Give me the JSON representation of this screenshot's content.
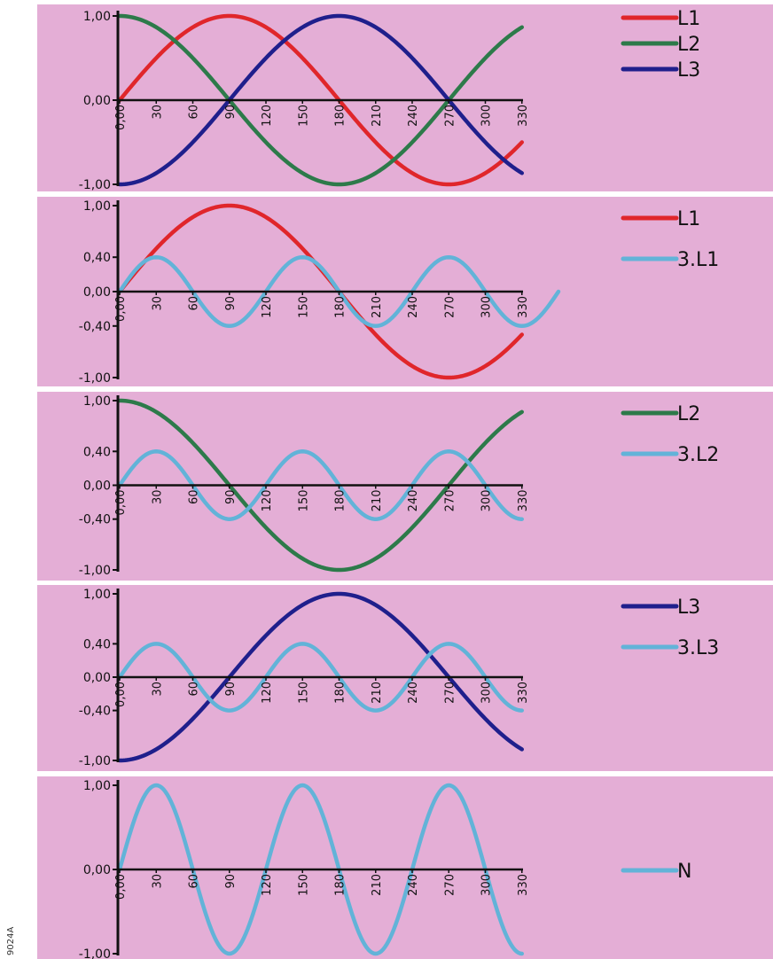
{
  "figure_code": "9024A",
  "colors": {
    "background": "#e4aed6",
    "axis": "#111111",
    "L1": "#e0262b",
    "L2": "#2d7a4a",
    "L3": "#1f1f8c",
    "harmonic": "#62b3d8"
  },
  "chart_data": [
    {
      "type": "line",
      "x_ticks": [
        "0,00",
        "30",
        "60",
        "90",
        "120",
        "150",
        "180",
        "210",
        "240",
        "270",
        "300",
        "330"
      ],
      "y_ticks": [
        "1,00",
        "0,00",
        "-1,00"
      ],
      "xlim": [
        0,
        330
      ],
      "ylim": [
        -1,
        1
      ],
      "grid": false,
      "legend_position": "right",
      "series": [
        {
          "name": "L1",
          "function": "sin",
          "phase_deg": 0,
          "amplitude": 1,
          "harmonic": 1,
          "x_range": [
            0,
            330
          ],
          "color": "#e0262b"
        },
        {
          "name": "L2",
          "function": "sin",
          "phase_deg": 90,
          "amplitude": 1,
          "harmonic": 1,
          "x_range": [
            0,
            330
          ],
          "color": "#2d7a4a"
        },
        {
          "name": "L3",
          "function": "sin",
          "phase_deg": -90,
          "amplitude": 1,
          "harmonic": 1,
          "x_range": [
            0,
            330
          ],
          "color": "#1f1f8c"
        }
      ]
    },
    {
      "type": "line",
      "x_ticks": [
        "0,00",
        "30",
        "60",
        "90",
        "120",
        "150",
        "180",
        "210",
        "240",
        "270",
        "300",
        "330"
      ],
      "y_ticks": [
        "1,00",
        "0,40",
        "0,00",
        "-0,40",
        "-1,00"
      ],
      "xlim": [
        0,
        330
      ],
      "ylim": [
        -1,
        1
      ],
      "grid": false,
      "legend_position": "right",
      "series": [
        {
          "name": "L1",
          "function": "sin",
          "phase_deg": 0,
          "amplitude": 1,
          "harmonic": 1,
          "x_range": [
            0,
            330
          ],
          "color": "#e0262b"
        },
        {
          "name": "3.L1",
          "function": "sin",
          "phase_deg": 0,
          "amplitude": 0.4,
          "harmonic": 3,
          "x_range": [
            0,
            360
          ],
          "color": "#62b3d8"
        }
      ]
    },
    {
      "type": "line",
      "x_ticks": [
        "0,00",
        "30",
        "60",
        "90",
        "120",
        "150",
        "180",
        "210",
        "240",
        "270",
        "300",
        "330"
      ],
      "y_ticks": [
        "1,00",
        "0,40",
        "0,00",
        "-0,40",
        "-1,00"
      ],
      "xlim": [
        0,
        330
      ],
      "ylim": [
        -1,
        1
      ],
      "grid": false,
      "legend_position": "right",
      "series": [
        {
          "name": "L2",
          "function": "sin",
          "phase_deg": 90,
          "amplitude": 1,
          "harmonic": 1,
          "x_range": [
            0,
            330
          ],
          "color": "#2d7a4a"
        },
        {
          "name": "3.L2",
          "function": "sin",
          "phase_deg": 0,
          "amplitude": 0.4,
          "harmonic": 3,
          "x_range": [
            0,
            330
          ],
          "color": "#62b3d8"
        }
      ]
    },
    {
      "type": "line",
      "x_ticks": [
        "0,00",
        "30",
        "60",
        "90",
        "120",
        "150",
        "180",
        "210",
        "240",
        "270",
        "300",
        "330"
      ],
      "y_ticks": [
        "1,00",
        "0,40",
        "0,00",
        "-0,40",
        "-1,00"
      ],
      "xlim": [
        0,
        330
      ],
      "ylim": [
        -1,
        1
      ],
      "grid": false,
      "legend_position": "right",
      "series": [
        {
          "name": "L3",
          "function": "sin",
          "phase_deg": -90,
          "amplitude": 1,
          "harmonic": 1,
          "x_range": [
            0,
            330
          ],
          "color": "#1f1f8c"
        },
        {
          "name": "3.L3",
          "function": "sin",
          "phase_deg": 0,
          "amplitude": 0.4,
          "harmonic": 3,
          "x_range": [
            0,
            330
          ],
          "color": "#62b3d8"
        }
      ]
    },
    {
      "type": "line",
      "x_ticks": [
        "0,00",
        "30",
        "60",
        "90",
        "120",
        "150",
        "180",
        "210",
        "240",
        "270",
        "300",
        "330"
      ],
      "y_ticks": [
        "1,00",
        "0,00",
        "-1,00"
      ],
      "xlim": [
        0,
        330
      ],
      "ylim": [
        -1,
        1
      ],
      "grid": false,
      "legend_position": "right",
      "series": [
        {
          "name": "N",
          "function": "sin",
          "phase_deg": 0,
          "amplitude": 1,
          "harmonic": 3,
          "x_range": [
            0,
            330
          ],
          "color": "#62b3d8"
        }
      ]
    }
  ]
}
